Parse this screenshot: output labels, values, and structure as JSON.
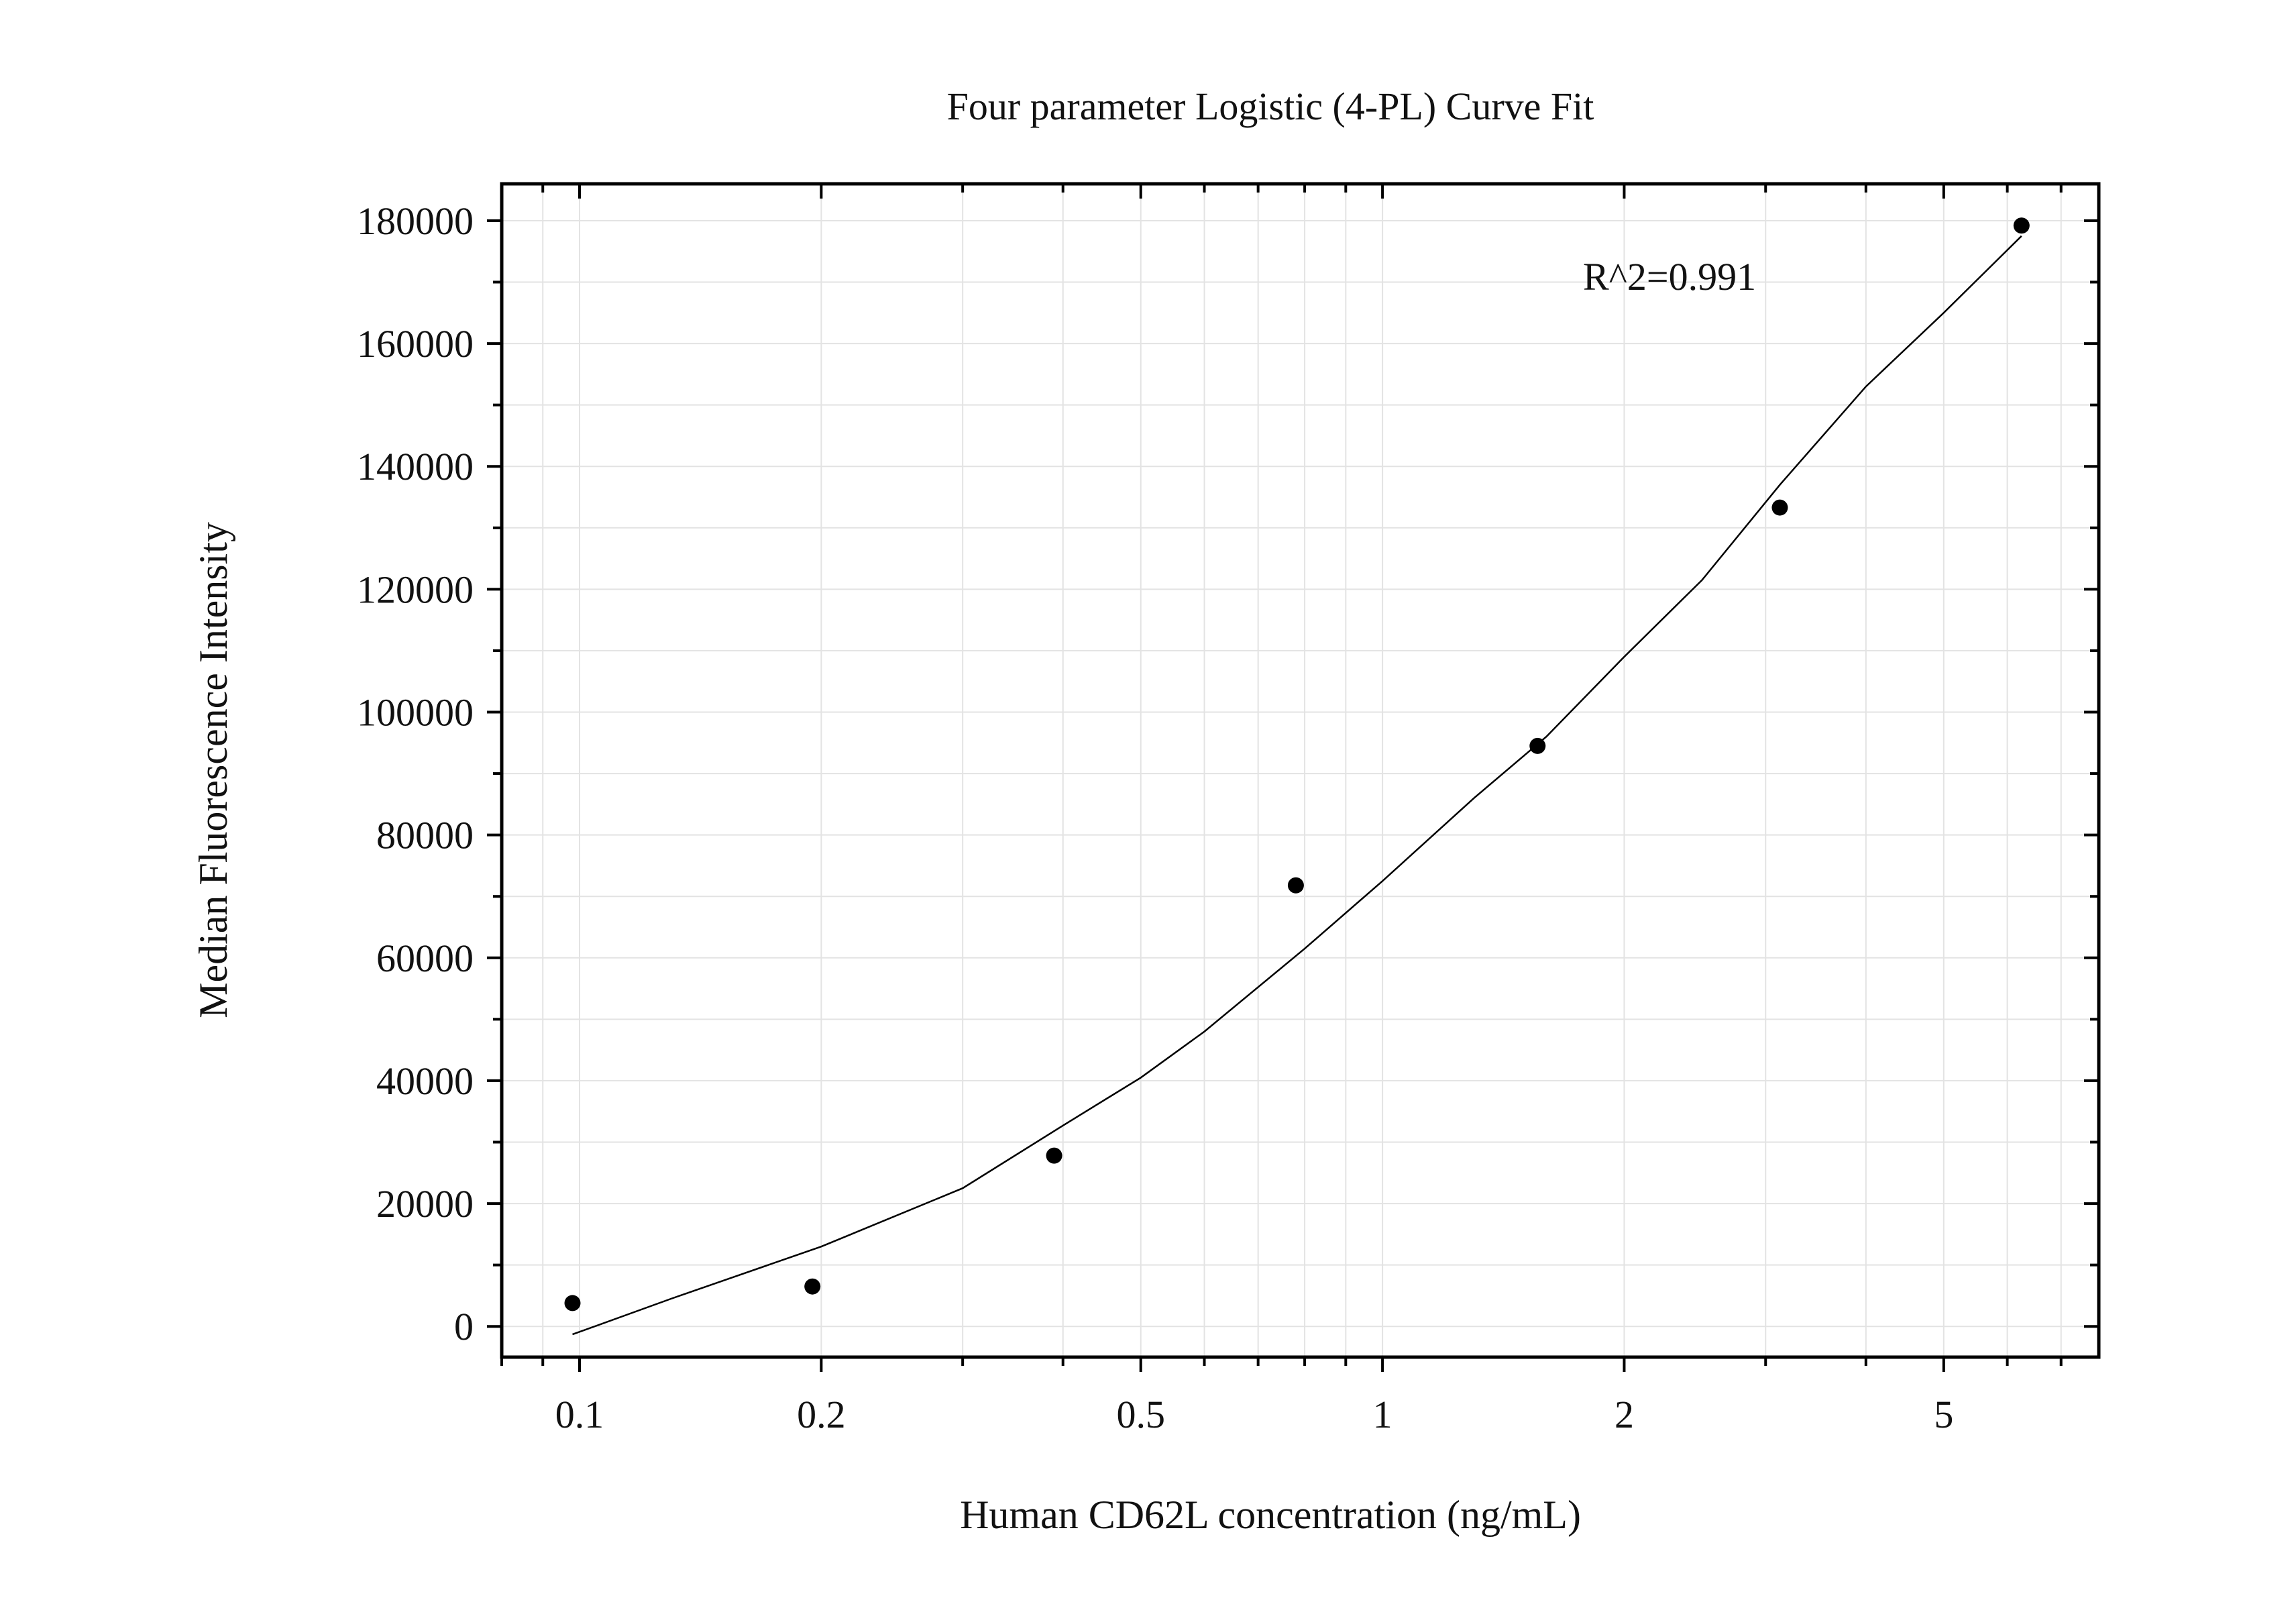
{
  "chart_data": {
    "type": "scatter",
    "title": "Four parameter Logistic (4-PL) Curve Fit",
    "xlabel": "Human CD62L concentration (ng/mL)",
    "ylabel": "Median Fluorescence Intensity",
    "x_scale": "log",
    "xlim": [
      0.08,
      7.8
    ],
    "ylim": [
      -5000,
      186000
    ],
    "x_ticks": [
      {
        "value": 0.1,
        "label": "0.1"
      },
      {
        "value": 0.2,
        "label": "0.2"
      },
      {
        "value": 0.5,
        "label": "0.5"
      },
      {
        "value": 1,
        "label": "1"
      },
      {
        "value": 2,
        "label": "2"
      },
      {
        "value": 5,
        "label": "5"
      }
    ],
    "y_ticks": [
      {
        "value": 0,
        "label": "0"
      },
      {
        "value": 20000,
        "label": "20000"
      },
      {
        "value": 40000,
        "label": "40000"
      },
      {
        "value": 60000,
        "label": "60000"
      },
      {
        "value": 80000,
        "label": "80000"
      },
      {
        "value": 100000,
        "label": "100000"
      },
      {
        "value": 120000,
        "label": "120000"
      },
      {
        "value": 140000,
        "label": "140000"
      },
      {
        "value": 160000,
        "label": "160000"
      },
      {
        "value": 180000,
        "label": "180000"
      }
    ],
    "grid": true,
    "points": [
      {
        "x": 0.098,
        "y": 3800
      },
      {
        "x": 0.195,
        "y": 6500
      },
      {
        "x": 0.39,
        "y": 27800
      },
      {
        "x": 0.78,
        "y": 71800
      },
      {
        "x": 1.56,
        "y": 94500
      },
      {
        "x": 3.125,
        "y": 133300
      },
      {
        "x": 6.25,
        "y": 179200
      }
    ],
    "fit_curve": [
      {
        "x": 0.098,
        "y": -1300
      },
      {
        "x": 0.13,
        "y": 4500
      },
      {
        "x": 0.2,
        "y": 13000
      },
      {
        "x": 0.3,
        "y": 22500
      },
      {
        "x": 0.4,
        "y": 32700
      },
      {
        "x": 0.5,
        "y": 40500
      },
      {
        "x": 0.6,
        "y": 48000
      },
      {
        "x": 0.8,
        "y": 61500
      },
      {
        "x": 1.0,
        "y": 72500
      },
      {
        "x": 1.3,
        "y": 86000
      },
      {
        "x": 1.6,
        "y": 96000
      },
      {
        "x": 2.0,
        "y": 109000
      },
      {
        "x": 2.5,
        "y": 121500
      },
      {
        "x": 3.125,
        "y": 137000
      },
      {
        "x": 4.0,
        "y": 153000
      },
      {
        "x": 5.0,
        "y": 165000
      },
      {
        "x": 6.25,
        "y": 177500
      }
    ],
    "annotation": "R^2=0.991"
  }
}
